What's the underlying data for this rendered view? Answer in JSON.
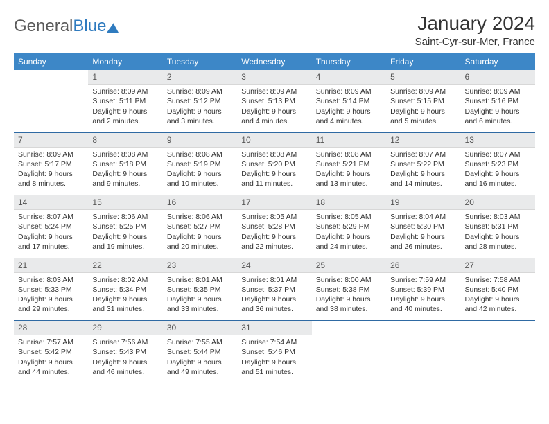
{
  "brand": {
    "name1": "General",
    "name2": "Blue"
  },
  "title": "January 2024",
  "location": "Saint-Cyr-sur-Mer, France",
  "dayHeaders": [
    "Sunday",
    "Monday",
    "Tuesday",
    "Wednesday",
    "Thursday",
    "Friday",
    "Saturday"
  ],
  "colors": {
    "headerBg": "#3d87c7",
    "headerText": "#ffffff",
    "dayNumBg": "#e9eaeb",
    "weekSep": "#2f6aa3",
    "brandGray": "#5a5a5a",
    "brandBlue": "#2f7bbf"
  },
  "weeks": [
    [
      {
        "n": "",
        "sr": "",
        "ss": "",
        "dl": ""
      },
      {
        "n": "1",
        "sr": "Sunrise: 8:09 AM",
        "ss": "Sunset: 5:11 PM",
        "dl": "Daylight: 9 hours and 2 minutes."
      },
      {
        "n": "2",
        "sr": "Sunrise: 8:09 AM",
        "ss": "Sunset: 5:12 PM",
        "dl": "Daylight: 9 hours and 3 minutes."
      },
      {
        "n": "3",
        "sr": "Sunrise: 8:09 AM",
        "ss": "Sunset: 5:13 PM",
        "dl": "Daylight: 9 hours and 4 minutes."
      },
      {
        "n": "4",
        "sr": "Sunrise: 8:09 AM",
        "ss": "Sunset: 5:14 PM",
        "dl": "Daylight: 9 hours and 4 minutes."
      },
      {
        "n": "5",
        "sr": "Sunrise: 8:09 AM",
        "ss": "Sunset: 5:15 PM",
        "dl": "Daylight: 9 hours and 5 minutes."
      },
      {
        "n": "6",
        "sr": "Sunrise: 8:09 AM",
        "ss": "Sunset: 5:16 PM",
        "dl": "Daylight: 9 hours and 6 minutes."
      }
    ],
    [
      {
        "n": "7",
        "sr": "Sunrise: 8:09 AM",
        "ss": "Sunset: 5:17 PM",
        "dl": "Daylight: 9 hours and 8 minutes."
      },
      {
        "n": "8",
        "sr": "Sunrise: 8:08 AM",
        "ss": "Sunset: 5:18 PM",
        "dl": "Daylight: 9 hours and 9 minutes."
      },
      {
        "n": "9",
        "sr": "Sunrise: 8:08 AM",
        "ss": "Sunset: 5:19 PM",
        "dl": "Daylight: 9 hours and 10 minutes."
      },
      {
        "n": "10",
        "sr": "Sunrise: 8:08 AM",
        "ss": "Sunset: 5:20 PM",
        "dl": "Daylight: 9 hours and 11 minutes."
      },
      {
        "n": "11",
        "sr": "Sunrise: 8:08 AM",
        "ss": "Sunset: 5:21 PM",
        "dl": "Daylight: 9 hours and 13 minutes."
      },
      {
        "n": "12",
        "sr": "Sunrise: 8:07 AM",
        "ss": "Sunset: 5:22 PM",
        "dl": "Daylight: 9 hours and 14 minutes."
      },
      {
        "n": "13",
        "sr": "Sunrise: 8:07 AM",
        "ss": "Sunset: 5:23 PM",
        "dl": "Daylight: 9 hours and 16 minutes."
      }
    ],
    [
      {
        "n": "14",
        "sr": "Sunrise: 8:07 AM",
        "ss": "Sunset: 5:24 PM",
        "dl": "Daylight: 9 hours and 17 minutes."
      },
      {
        "n": "15",
        "sr": "Sunrise: 8:06 AM",
        "ss": "Sunset: 5:25 PM",
        "dl": "Daylight: 9 hours and 19 minutes."
      },
      {
        "n": "16",
        "sr": "Sunrise: 8:06 AM",
        "ss": "Sunset: 5:27 PM",
        "dl": "Daylight: 9 hours and 20 minutes."
      },
      {
        "n": "17",
        "sr": "Sunrise: 8:05 AM",
        "ss": "Sunset: 5:28 PM",
        "dl": "Daylight: 9 hours and 22 minutes."
      },
      {
        "n": "18",
        "sr": "Sunrise: 8:05 AM",
        "ss": "Sunset: 5:29 PM",
        "dl": "Daylight: 9 hours and 24 minutes."
      },
      {
        "n": "19",
        "sr": "Sunrise: 8:04 AM",
        "ss": "Sunset: 5:30 PM",
        "dl": "Daylight: 9 hours and 26 minutes."
      },
      {
        "n": "20",
        "sr": "Sunrise: 8:03 AM",
        "ss": "Sunset: 5:31 PM",
        "dl": "Daylight: 9 hours and 28 minutes."
      }
    ],
    [
      {
        "n": "21",
        "sr": "Sunrise: 8:03 AM",
        "ss": "Sunset: 5:33 PM",
        "dl": "Daylight: 9 hours and 29 minutes."
      },
      {
        "n": "22",
        "sr": "Sunrise: 8:02 AM",
        "ss": "Sunset: 5:34 PM",
        "dl": "Daylight: 9 hours and 31 minutes."
      },
      {
        "n": "23",
        "sr": "Sunrise: 8:01 AM",
        "ss": "Sunset: 5:35 PM",
        "dl": "Daylight: 9 hours and 33 minutes."
      },
      {
        "n": "24",
        "sr": "Sunrise: 8:01 AM",
        "ss": "Sunset: 5:37 PM",
        "dl": "Daylight: 9 hours and 36 minutes."
      },
      {
        "n": "25",
        "sr": "Sunrise: 8:00 AM",
        "ss": "Sunset: 5:38 PM",
        "dl": "Daylight: 9 hours and 38 minutes."
      },
      {
        "n": "26",
        "sr": "Sunrise: 7:59 AM",
        "ss": "Sunset: 5:39 PM",
        "dl": "Daylight: 9 hours and 40 minutes."
      },
      {
        "n": "27",
        "sr": "Sunrise: 7:58 AM",
        "ss": "Sunset: 5:40 PM",
        "dl": "Daylight: 9 hours and 42 minutes."
      }
    ],
    [
      {
        "n": "28",
        "sr": "Sunrise: 7:57 AM",
        "ss": "Sunset: 5:42 PM",
        "dl": "Daylight: 9 hours and 44 minutes."
      },
      {
        "n": "29",
        "sr": "Sunrise: 7:56 AM",
        "ss": "Sunset: 5:43 PM",
        "dl": "Daylight: 9 hours and 46 minutes."
      },
      {
        "n": "30",
        "sr": "Sunrise: 7:55 AM",
        "ss": "Sunset: 5:44 PM",
        "dl": "Daylight: 9 hours and 49 minutes."
      },
      {
        "n": "31",
        "sr": "Sunrise: 7:54 AM",
        "ss": "Sunset: 5:46 PM",
        "dl": "Daylight: 9 hours and 51 minutes."
      },
      {
        "n": "",
        "sr": "",
        "ss": "",
        "dl": ""
      },
      {
        "n": "",
        "sr": "",
        "ss": "",
        "dl": ""
      },
      {
        "n": "",
        "sr": "",
        "ss": "",
        "dl": ""
      }
    ]
  ]
}
